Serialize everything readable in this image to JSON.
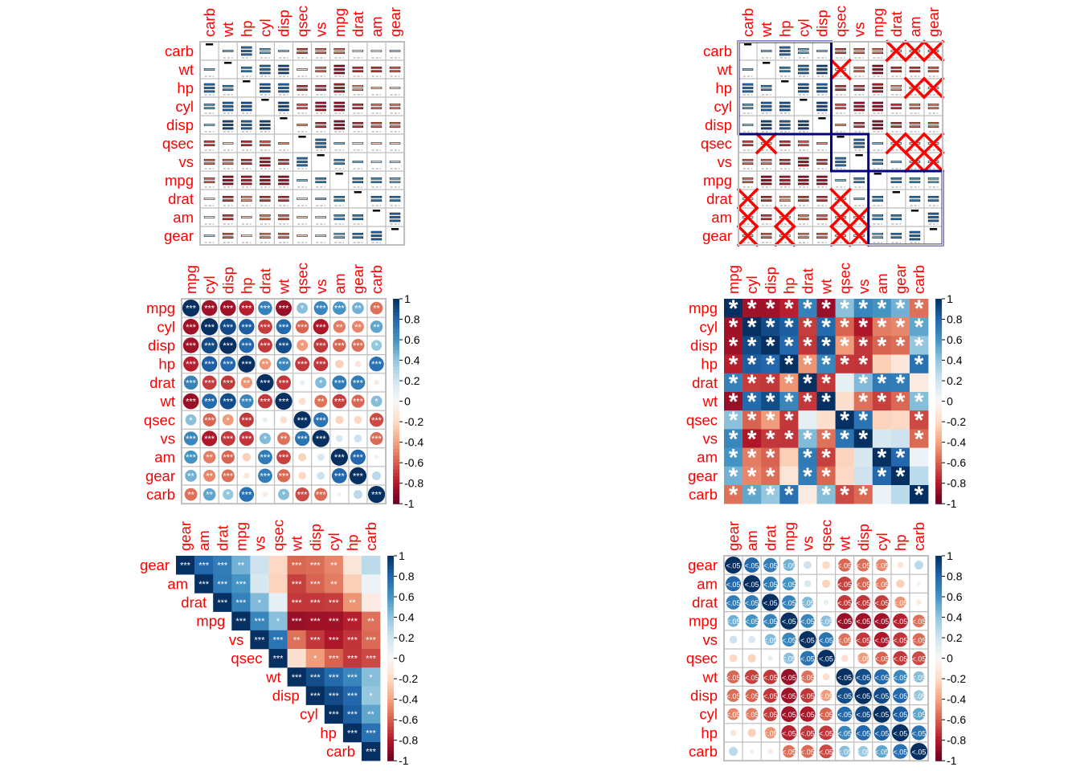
{
  "chart_data": {
    "type": "heatmap",
    "variables": [
      "mpg",
      "cyl",
      "disp",
      "hp",
      "drat",
      "wt",
      "qsec",
      "vs",
      "am",
      "gear",
      "carb"
    ],
    "correlation_matrix": [
      [
        1.0,
        -0.85,
        -0.85,
        -0.78,
        0.68,
        -0.87,
        0.42,
        0.66,
        0.6,
        0.48,
        -0.55
      ],
      [
        -0.85,
        1.0,
        0.9,
        0.83,
        -0.7,
        0.78,
        -0.59,
        -0.81,
        -0.52,
        -0.49,
        0.53
      ],
      [
        -0.85,
        0.9,
        1.0,
        0.79,
        -0.71,
        0.89,
        -0.43,
        -0.71,
        -0.59,
        -0.56,
        0.39
      ],
      [
        -0.78,
        0.83,
        0.79,
        1.0,
        -0.45,
        0.66,
        -0.71,
        -0.72,
        -0.24,
        -0.13,
        0.75
      ],
      [
        0.68,
        -0.7,
        -0.71,
        -0.45,
        1.0,
        -0.71,
        0.09,
        0.44,
        0.71,
        0.7,
        -0.09
      ],
      [
        -0.87,
        0.78,
        0.89,
        0.66,
        -0.71,
        1.0,
        -0.17,
        -0.55,
        -0.69,
        -0.58,
        0.43
      ],
      [
        0.42,
        -0.59,
        -0.43,
        -0.71,
        0.09,
        -0.17,
        1.0,
        0.74,
        -0.23,
        -0.21,
        -0.66
      ],
      [
        0.66,
        -0.81,
        -0.71,
        -0.72,
        0.44,
        -0.55,
        0.74,
        1.0,
        0.17,
        0.21,
        -0.57
      ],
      [
        0.6,
        -0.52,
        -0.59,
        -0.24,
        0.71,
        -0.69,
        -0.23,
        0.17,
        1.0,
        0.79,
        0.06
      ],
      [
        0.48,
        -0.49,
        -0.56,
        -0.13,
        0.7,
        -0.58,
        -0.21,
        0.21,
        0.79,
        1.0,
        0.27
      ],
      [
        -0.55,
        0.53,
        0.39,
        0.75,
        -0.09,
        0.43,
        -0.66,
        -0.57,
        0.06,
        0.27,
        1.0
      ]
    ],
    "colorbar_ticks": [
      "1",
      "0.8",
      "0.6",
      "0.4",
      "0.2",
      "0",
      "-0.2",
      "-0.4",
      "-0.6",
      "-0.8",
      "-1"
    ],
    "colors": {
      "neg": "#67001F",
      "mid": "#F7F7F7",
      "pos": "#053061",
      "label": "#FF0000",
      "grid": "#BEBEBE",
      "rect": "#000080",
      "cross": "#FF0000"
    },
    "panels": [
      {
        "id": "p1",
        "method": "shade-pattern",
        "order": [
          "carb",
          "wt",
          "hp",
          "cyl",
          "disp",
          "qsec",
          "vs",
          "mpg",
          "drat",
          "am",
          "gear"
        ],
        "type": "full",
        "colorbar": false,
        "insig": "none",
        "rects": false
      },
      {
        "id": "p2",
        "method": "shade-pattern",
        "order": [
          "carb",
          "wt",
          "hp",
          "cyl",
          "disp",
          "qsec",
          "vs",
          "mpg",
          "drat",
          "am",
          "gear"
        ],
        "type": "full",
        "colorbar": false,
        "insig": "pch",
        "rects": true
      },
      {
        "id": "p3",
        "method": "circle",
        "order": [
          "mpg",
          "cyl",
          "disp",
          "hp",
          "drat",
          "wt",
          "qsec",
          "vs",
          "am",
          "gear",
          "carb"
        ],
        "type": "full",
        "colorbar": true,
        "insig": "label_sig"
      },
      {
        "id": "p4",
        "method": "color",
        "order": [
          "mpg",
          "cyl",
          "disp",
          "hp",
          "drat",
          "wt",
          "qsec",
          "vs",
          "am",
          "gear",
          "carb"
        ],
        "type": "full",
        "colorbar": true,
        "insig": "label_sig_big"
      },
      {
        "id": "p5",
        "method": "color",
        "order": [
          "gear",
          "am",
          "drat",
          "mpg",
          "vs",
          "qsec",
          "wt",
          "disp",
          "cyl",
          "hp",
          "carb"
        ],
        "type": "upper",
        "colorbar": true,
        "insig": "label_sig"
      },
      {
        "id": "p6",
        "method": "circle",
        "order": [
          "gear",
          "am",
          "drat",
          "mpg",
          "vs",
          "qsec",
          "wt",
          "disp",
          "cyl",
          "hp",
          "carb"
        ],
        "type": "full",
        "colorbar": true,
        "insig": "p-value"
      }
    ],
    "p_value_label": "<.05"
  }
}
